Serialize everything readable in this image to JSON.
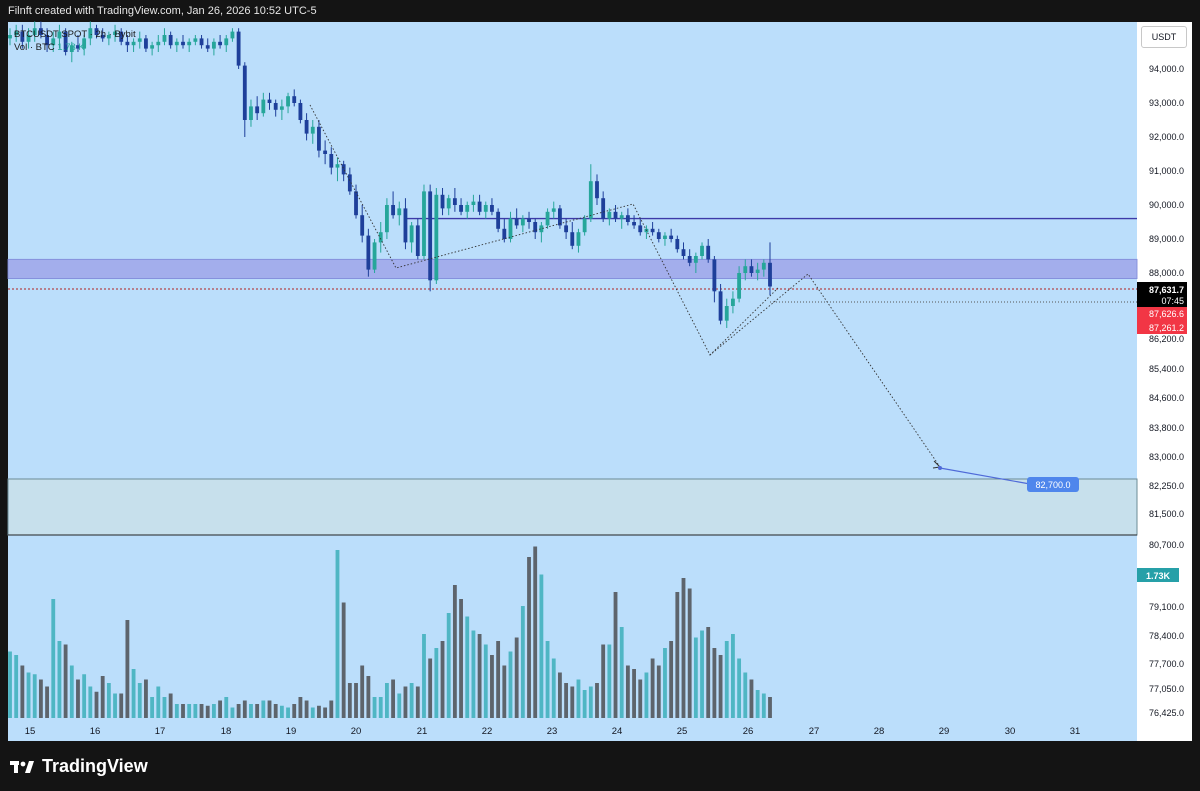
{
  "header": {
    "text": "Filnft created with TradingView.com, Jan 26, 2026 10:52 UTC-5"
  },
  "legend": {
    "symbol": "BTCUSDT SPOT · 2h · Bybit",
    "vol_label": "Vol · BTC",
    "vol_value": "1.73 K"
  },
  "currency_button": "USDT",
  "footer": {
    "brand": "TradingView"
  },
  "colors": {
    "chart_bg": "#bbdefb",
    "up": "#26a69a",
    "down": "#1e3f9a",
    "vol_up": "#4fb6c4",
    "vol_down": "#5d646c",
    "zone_blue": "#9fa6ea",
    "zone_green": "#c7e0ec",
    "resistance": "#3d3aa8",
    "target_label": "#4f86ec",
    "last_price_bg": "#000000",
    "red_label": "#f23645"
  },
  "chart_data": {
    "type": "candlestick",
    "title": "BTCUSDT SPOT · 2h · Bybit",
    "x_ticks": [
      "15",
      "16",
      "17",
      "18",
      "19",
      "20",
      "21",
      "22",
      "23",
      "24",
      "25",
      "26",
      "27",
      "28",
      "29",
      "30",
      "31"
    ],
    "y_ticks_top": [
      "94,000.0",
      "93,000.0",
      "92,000.0",
      "91,000.0",
      "90,000.0",
      "89,000.0",
      "88,000.0",
      "86,200.0",
      "85,400.0",
      "84,600.0",
      "83,800.0",
      "83,000.0",
      "82,250.0",
      "81,500.0",
      "80,700.0"
    ],
    "y_ticks_vol": [
      "79,100.0",
      "78,400.0",
      "77,700.0",
      "77,050.0",
      "76,425.0"
    ],
    "price_labels": [
      {
        "text": "87,631.7",
        "sub": "07:45",
        "kind": "last"
      },
      {
        "text": "87,626.6",
        "kind": "red"
      },
      {
        "text": "87,261.2",
        "kind": "red"
      }
    ],
    "vol_badge": "1.73K",
    "target_label": "82,700.0",
    "levels": {
      "resistance": 89600,
      "zone_top": 88400,
      "zone_bottom": 87850,
      "last_price": 87631.7,
      "dotted_level": 87261.2,
      "bottom_zone_top": 82520,
      "bottom_zone_bottom": 80850
    },
    "candles_desc": "approx 2h candles Jan 15 – Jan 26, 2026",
    "candles": [
      [
        94900,
        95200,
        94700,
        95000
      ],
      [
        95000,
        95300,
        94800,
        95100
      ],
      [
        95100,
        95300,
        94600,
        94800
      ],
      [
        94800,
        95200,
        94600,
        95000
      ],
      [
        95000,
        95400,
        94800,
        95200
      ],
      [
        95200,
        95400,
        94900,
        95000
      ],
      [
        95000,
        95200,
        94500,
        94700
      ],
      [
        94700,
        95100,
        94500,
        94900
      ],
      [
        94900,
        95300,
        94600,
        95100
      ],
      [
        95100,
        95200,
        94400,
        94500
      ],
      [
        94500,
        94800,
        94200,
        94700
      ],
      [
        94700,
        95000,
        94500,
        94600
      ],
      [
        94600,
        95000,
        94400,
        94900
      ],
      [
        94900,
        95400,
        94700,
        95200
      ],
      [
        95200,
        95300,
        94900,
        95000
      ],
      [
        95000,
        95200,
        94800,
        94900
      ],
      [
        94900,
        95100,
        94700,
        95000
      ],
      [
        95000,
        95300,
        94800,
        95100
      ],
      [
        95100,
        95200,
        94700,
        94800
      ],
      [
        94800,
        95000,
        94500,
        94700
      ],
      [
        94700,
        94900,
        94500,
        94800
      ],
      [
        94800,
        95100,
        94600,
        94900
      ],
      [
        94900,
        95000,
        94500,
        94600
      ],
      [
        94600,
        94800,
        94400,
        94700
      ],
      [
        94700,
        95000,
        94500,
        94800
      ],
      [
        94800,
        95200,
        94700,
        95000
      ],
      [
        95000,
        95100,
        94600,
        94700
      ],
      [
        94700,
        94900,
        94500,
        94800
      ],
      [
        94800,
        95000,
        94600,
        94700
      ],
      [
        94700,
        94900,
        94500,
        94800
      ],
      [
        94800,
        95000,
        94700,
        94900
      ],
      [
        94900,
        95000,
        94600,
        94700
      ],
      [
        94700,
        94900,
        94500,
        94600
      ],
      [
        94600,
        94900,
        94400,
        94800
      ],
      [
        94800,
        95000,
        94600,
        94700
      ],
      [
        94700,
        95000,
        94500,
        94900
      ],
      [
        94900,
        95200,
        94800,
        95100
      ],
      [
        95100,
        95200,
        94000,
        94100
      ],
      [
        94100,
        94200,
        92000,
        92500
      ],
      [
        92500,
        93100,
        92300,
        92900
      ],
      [
        92900,
        93200,
        92500,
        92700
      ],
      [
        92700,
        93300,
        92600,
        93100
      ],
      [
        93100,
        93300,
        92800,
        93000
      ],
      [
        93000,
        93100,
        92600,
        92800
      ],
      [
        92800,
        93100,
        92500,
        92900
      ],
      [
        92900,
        93300,
        92700,
        93200
      ],
      [
        93200,
        93400,
        92900,
        93000
      ],
      [
        93000,
        93100,
        92400,
        92500
      ],
      [
        92500,
        92700,
        91900,
        92100
      ],
      [
        92100,
        92500,
        91800,
        92300
      ],
      [
        92300,
        92500,
        91400,
        91600
      ],
      [
        91600,
        91900,
        91200,
        91500
      ],
      [
        91500,
        91700,
        90900,
        91100
      ],
      [
        91100,
        91400,
        90700,
        91200
      ],
      [
        91200,
        91300,
        90700,
        90900
      ],
      [
        90900,
        91100,
        90300,
        90400
      ],
      [
        90400,
        90600,
        89600,
        89700
      ],
      [
        89700,
        90000,
        88900,
        89100
      ],
      [
        89100,
        89300,
        87900,
        88100
      ],
      [
        88100,
        89000,
        88000,
        88900
      ],
      [
        88900,
        89500,
        88600,
        89200
      ],
      [
        89200,
        90200,
        89000,
        90000
      ],
      [
        90000,
        90400,
        89600,
        89700
      ],
      [
        89700,
        90100,
        89400,
        89900
      ],
      [
        89900,
        90200,
        88700,
        88900
      ],
      [
        88900,
        89500,
        88600,
        89400
      ],
      [
        89400,
        89600,
        88400,
        88500
      ],
      [
        88500,
        90600,
        88400,
        90400
      ],
      [
        90400,
        90600,
        87500,
        87800
      ],
      [
        87800,
        90500,
        87700,
        90300
      ],
      [
        90300,
        90500,
        89700,
        89900
      ],
      [
        89900,
        90300,
        89700,
        90200
      ],
      [
        90200,
        90500,
        89800,
        90000
      ],
      [
        90000,
        90200,
        89700,
        89800
      ],
      [
        89800,
        90100,
        89600,
        90000
      ],
      [
        90000,
        90300,
        89800,
        90100
      ],
      [
        90100,
        90300,
        89700,
        89800
      ],
      [
        89800,
        90100,
        89600,
        90000
      ],
      [
        90000,
        90200,
        89700,
        89800
      ],
      [
        89800,
        89900,
        89200,
        89300
      ],
      [
        89300,
        89600,
        88900,
        89000
      ],
      [
        89000,
        89800,
        88900,
        89600
      ],
      [
        89600,
        89900,
        89300,
        89400
      ],
      [
        89400,
        89700,
        89200,
        89600
      ],
      [
        89600,
        89800,
        89300,
        89500
      ],
      [
        89500,
        89600,
        89000,
        89200
      ],
      [
        89200,
        89500,
        88900,
        89400
      ],
      [
        89400,
        89900,
        89300,
        89800
      ],
      [
        89800,
        90100,
        89600,
        89900
      ],
      [
        89900,
        90000,
        89300,
        89400
      ],
      [
        89400,
        89600,
        89000,
        89200
      ],
      [
        89200,
        89500,
        88700,
        88800
      ],
      [
        88800,
        89300,
        88600,
        89200
      ],
      [
        89200,
        89700,
        89100,
        89600
      ],
      [
        89600,
        91200,
        89500,
        90700
      ],
      [
        90700,
        90900,
        90000,
        90200
      ],
      [
        90200,
        90400,
        89500,
        89600
      ],
      [
        89600,
        89900,
        89400,
        89800
      ],
      [
        89800,
        90000,
        89500,
        89600
      ],
      [
        89600,
        89800,
        89300,
        89700
      ],
      [
        89700,
        89900,
        89400,
        89500
      ],
      [
        89500,
        89700,
        89300,
        89400
      ],
      [
        89400,
        89600,
        89100,
        89200
      ],
      [
        89200,
        89400,
        89000,
        89300
      ],
      [
        89300,
        89500,
        89100,
        89200
      ],
      [
        89200,
        89300,
        88900,
        89000
      ],
      [
        89000,
        89200,
        88800,
        89100
      ],
      [
        89100,
        89300,
        88900,
        89000
      ],
      [
        89000,
        89100,
        88600,
        88700
      ],
      [
        88700,
        88900,
        88400,
        88500
      ],
      [
        88500,
        88700,
        88200,
        88300
      ],
      [
        88300,
        88600,
        88000,
        88500
      ],
      [
        88500,
        88900,
        88400,
        88800
      ],
      [
        88800,
        89000,
        88300,
        88400
      ],
      [
        88400,
        88500,
        87200,
        87500
      ],
      [
        87500,
        87700,
        86600,
        86700
      ],
      [
        86700,
        87300,
        86500,
        87100
      ],
      [
        87100,
        87500,
        86900,
        87300
      ],
      [
        87300,
        88200,
        87200,
        88000
      ],
      [
        88000,
        88400,
        87800,
        88200
      ],
      [
        88200,
        88400,
        87900,
        88000
      ],
      [
        88000,
        88300,
        87800,
        88100
      ],
      [
        88100,
        88400,
        87900,
        88300
      ],
      [
        88300,
        88900,
        87400,
        87632
      ]
    ],
    "volume_desc": "relative volume bars 0–1 scale, paired with candles",
    "volume": [
      0.38,
      0.36,
      0.3,
      0.26,
      0.25,
      0.22,
      0.18,
      0.68,
      0.44,
      0.42,
      0.3,
      0.22,
      0.25,
      0.18,
      0.15,
      0.24,
      0.2,
      0.14,
      0.14,
      0.56,
      0.28,
      0.2,
      0.22,
      0.12,
      0.18,
      0.12,
      0.14,
      0.08,
      0.08,
      0.08,
      0.08,
      0.08,
      0.07,
      0.08,
      0.1,
      0.12,
      0.06,
      0.08,
      0.1,
      0.08,
      0.08,
      0.1,
      0.1,
      0.08,
      0.07,
      0.06,
      0.08,
      0.12,
      0.1,
      0.06,
      0.07,
      0.06,
      0.1,
      0.96,
      0.66,
      0.2,
      0.2,
      0.3,
      0.24,
      0.12,
      0.12,
      0.2,
      0.22,
      0.14,
      0.18,
      0.2,
      0.18,
      0.48,
      0.34,
      0.4,
      0.44,
      0.6,
      0.76,
      0.68,
      0.58,
      0.5,
      0.48,
      0.42,
      0.36,
      0.44,
      0.3,
      0.38,
      0.46,
      0.64,
      0.92,
      0.98,
      0.82,
      0.44,
      0.34,
      0.26,
      0.2,
      0.18,
      0.22,
      0.16,
      0.18,
      0.2,
      0.42,
      0.42,
      0.72,
      0.52,
      0.3,
      0.28,
      0.22,
      0.26,
      0.34,
      0.3,
      0.4,
      0.44,
      0.72,
      0.8,
      0.74,
      0.46,
      0.5,
      0.52,
      0.4,
      0.36,
      0.44,
      0.48,
      0.34,
      0.26,
      0.22,
      0.16,
      0.14,
      0.12
    ]
  }
}
